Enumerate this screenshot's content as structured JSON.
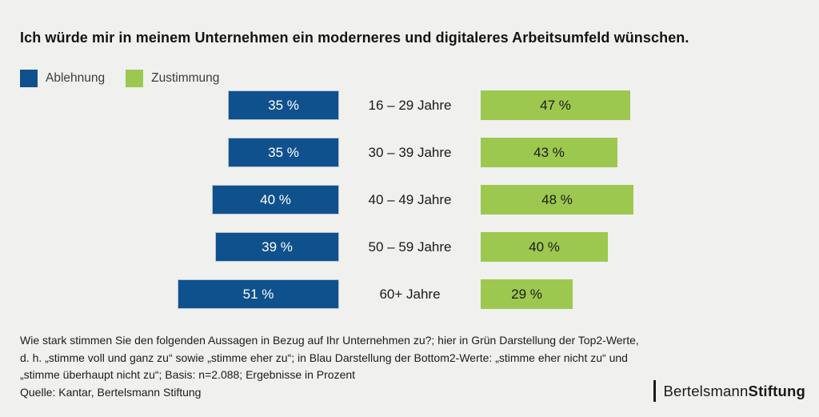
{
  "title": "Ich würde mir in meinem Unternehmen ein moderneres und digitaleres Arbeitsumfeld wünschen.",
  "legend": {
    "items": [
      {
        "label": "Ablehnung",
        "color": "#0f518c"
      },
      {
        "label": "Zustimmung",
        "color": "#9dc84f"
      }
    ]
  },
  "chart_data": {
    "type": "bar",
    "orientation": "diverging-horizontal",
    "categories": [
      "16 – 29 Jahre",
      "30 – 39 Jahre",
      "40 – 49 Jahre",
      "50 – 59 Jahre",
      "60+ Jahre"
    ],
    "series": [
      {
        "name": "Ablehnung",
        "side": "left",
        "color": "#0f518c",
        "values": [
          35,
          35,
          40,
          39,
          51
        ],
        "labels": [
          "35 %",
          "35 %",
          "40 %",
          "39 %",
          "51 %"
        ]
      },
      {
        "name": "Zustimmung",
        "side": "right",
        "color": "#9dc84f",
        "values": [
          47,
          43,
          48,
          40,
          29
        ],
        "labels": [
          "47 %",
          "43 %",
          "48 %",
          "40 %",
          "29 %"
        ]
      }
    ],
    "unit": "Prozent",
    "xlim": [
      0,
      55
    ],
    "grid": false,
    "legend_position": "top-left"
  },
  "footnote": {
    "line1": "Wie stark stimmen Sie den folgenden Aussagen in Bezug auf Ihr Unternehmen zu?; hier in Grün Darstellung der Top2-Werte,",
    "line2": "d. h. „stimme voll und ganz zu“ sowie „stimme eher zu“; in Blau Darstellung der Bottom2-Werte: „stimme eher nicht zu“ und",
    "line3": "„stimme überhaupt nicht zu“; Basis: n=2.088; Ergebnisse in Prozent",
    "source": "Quelle: Kantar, Bertelsmann Stiftung"
  },
  "logo": {
    "name": "Bertelsmann Stiftung",
    "part_regular": "Bertelsmann",
    "part_bold": "Stiftung"
  }
}
